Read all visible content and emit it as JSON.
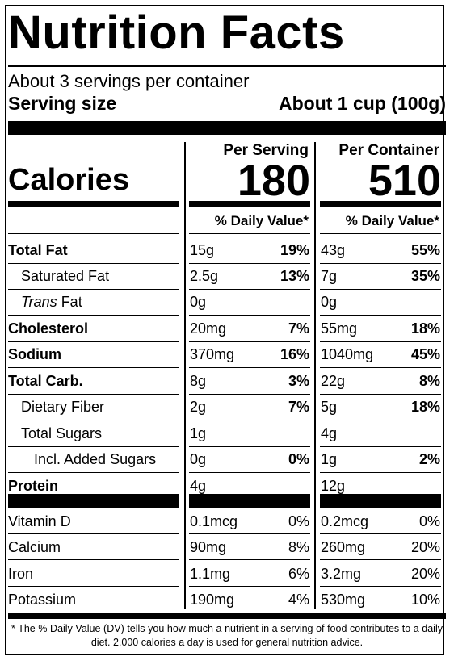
{
  "title": "Nutrition Facts",
  "servings_per_container": "About 3 servings per container",
  "serving_size_label": "Serving size",
  "serving_size_value": "About 1 cup (100g)",
  "col_per_serving": "Per Serving",
  "col_per_container": "Per Container",
  "calories_label": "Calories",
  "calories_per_serving": "180",
  "calories_per_container": "510",
  "dv_header": "% Daily Value*",
  "nutrients": [
    {
      "name": "Total Fat",
      "bold": true,
      "indent": 0,
      "s_amt": "15g",
      "s_dv": "19%",
      "c_amt": "43g",
      "c_dv": "55%"
    },
    {
      "name": "Saturated Fat",
      "bold": false,
      "indent": 1,
      "s_amt": "2.5g",
      "s_dv": "13%",
      "c_amt": "7g",
      "c_dv": "35%"
    },
    {
      "name_italic": "Trans",
      "name": " Fat",
      "bold": false,
      "indent": 1,
      "s_amt": "0g",
      "s_dv": "",
      "c_amt": "0g",
      "c_dv": ""
    },
    {
      "name": "Cholesterol",
      "bold": true,
      "indent": 0,
      "s_amt": "20mg",
      "s_dv": "7%",
      "c_amt": "55mg",
      "c_dv": "18%"
    },
    {
      "name": "Sodium",
      "bold": true,
      "indent": 0,
      "s_amt": "370mg",
      "s_dv": "16%",
      "c_amt": "1040mg",
      "c_dv": "45%"
    },
    {
      "name": "Total Carb.",
      "bold": true,
      "indent": 0,
      "s_amt": "8g",
      "s_dv": "3%",
      "c_amt": "22g",
      "c_dv": "8%"
    },
    {
      "name": "Dietary Fiber",
      "bold": false,
      "indent": 1,
      "s_amt": "2g",
      "s_dv": "7%",
      "c_amt": "5g",
      "c_dv": "18%"
    },
    {
      "name": "Total Sugars",
      "bold": false,
      "indent": 1,
      "s_amt": "1g",
      "s_dv": "",
      "c_amt": "4g",
      "c_dv": ""
    },
    {
      "name": "Incl. Added Sugars",
      "bold": false,
      "indent": 2,
      "s_amt": "0g",
      "s_dv": "0%",
      "c_amt": "1g",
      "c_dv": "2%"
    },
    {
      "name": "Protein",
      "bold": true,
      "indent": 0,
      "s_amt": "4g",
      "s_dv": "",
      "c_amt": "12g",
      "c_dv": ""
    }
  ],
  "vitamins": [
    {
      "name": "Vitamin D",
      "s_amt": "0.1mcg",
      "s_dv": "0%",
      "c_amt": "0.2mcg",
      "c_dv": "0%"
    },
    {
      "name": "Calcium",
      "s_amt": "90mg",
      "s_dv": "8%",
      "c_amt": "260mg",
      "c_dv": "20%"
    },
    {
      "name": "Iron",
      "s_amt": "1.1mg",
      "s_dv": "6%",
      "c_amt": "3.2mg",
      "c_dv": "20%"
    },
    {
      "name": "Potassium",
      "s_amt": "190mg",
      "s_dv": "4%",
      "c_amt": "530mg",
      "c_dv": "10%"
    }
  ],
  "footnote": "* The % Daily Value (DV) tells you how much a nutrient in a serving of food contributes to a daily diet. 2,000 calories a day is used for general nutrition advice."
}
